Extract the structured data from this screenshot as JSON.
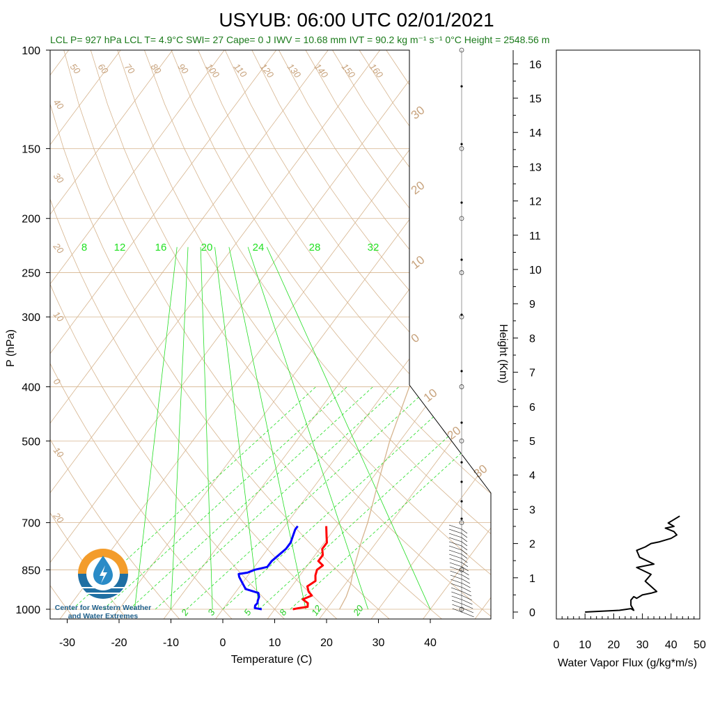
{
  "title": "USYUB: 06:00 UTC 02/01/2021",
  "info_line": "LCL P= 927 hPa  LCL T= 4.9°C  SWI= 27  Cape= 0 J  IWV = 10.68 mm  IVT = 90.2 kg m⁻¹ s⁻¹   0°C Height = 2548.56 m",
  "logo": {
    "line1": "Center for Western Weather",
    "line2": "and Water Extremes"
  },
  "colors": {
    "temperature": "#ff0000",
    "dewpoint": "#0000ff",
    "adiabats": "#d6b48e",
    "mixing_ratio": "#22dd22",
    "flux": "#000000"
  },
  "chart_data": [
    {
      "type": "line",
      "name": "skew-t",
      "xlabel": "Temperature (C)",
      "ylabel": "P (hPa)",
      "y_scale": "log",
      "y_ticks": [
        100,
        150,
        200,
        250,
        300,
        400,
        500,
        700,
        850,
        1000
      ],
      "x_ticks": [
        -30,
        -20,
        -10,
        0,
        10,
        20,
        30,
        40
      ],
      "xlim": [
        -33,
        51
      ],
      "ylim": [
        1050,
        100
      ],
      "dry_adiabat_labels": [
        "50",
        "60",
        "70",
        "80",
        "90",
        "100",
        "110",
        "120",
        "130",
        "140",
        "150",
        "160"
      ],
      "isotherm_labels_left": [
        "40",
        "30",
        "20",
        "10",
        "0",
        "10",
        "20"
      ],
      "isotherm_labels_right": [
        "30",
        "20",
        "10",
        "0",
        "10",
        "20",
        "30"
      ],
      "mixing_ratio_labels_top": [
        "8",
        "12",
        "16",
        "20",
        "24",
        "28",
        "32"
      ],
      "mixing_ratio_labels_bottom": [
        "2",
        "3",
        "5",
        "8",
        "12",
        "20"
      ],
      "series": [
        {
          "name": "temperature",
          "points": [
            [
              13.5,
              1000
            ],
            [
              14.5,
              995
            ],
            [
              16.0,
              990
            ],
            [
              15.5,
              975
            ],
            [
              14.0,
              960
            ],
            [
              15.2,
              945
            ],
            [
              14.0,
              930
            ],
            [
              13.0,
              910
            ],
            [
              13.8,
              890
            ],
            [
              13.0,
              870
            ],
            [
              12.5,
              850
            ],
            [
              13.0,
              835
            ],
            [
              11.5,
              820
            ],
            [
              11.5,
              800
            ],
            [
              10.5,
              780
            ],
            [
              10.5,
              760
            ],
            [
              9.5,
              740
            ],
            [
              8.5,
              720
            ],
            [
              8.0,
              710
            ]
          ]
        },
        {
          "name": "dewpoint",
          "points": [
            [
              7.5,
              1000
            ],
            [
              6.0,
              995
            ],
            [
              5.7,
              985
            ],
            [
              5.8,
              975
            ],
            [
              5.5,
              965
            ],
            [
              5.2,
              950
            ],
            [
              4.5,
              935
            ],
            [
              1.5,
              920
            ],
            [
              0.5,
              905
            ],
            [
              -0.5,
              890
            ],
            [
              -1.5,
              875
            ],
            [
              -2.0,
              865
            ],
            [
              -0.5,
              860
            ],
            [
              0.5,
              850
            ],
            [
              2.5,
              840
            ],
            [
              2.5,
              820
            ],
            [
              3.0,
              800
            ],
            [
              3.5,
              780
            ],
            [
              3.5,
              760
            ],
            [
              3.0,
              740
            ],
            [
              2.5,
              720
            ],
            [
              2.5,
              710
            ]
          ]
        },
        {
          "name": "parcel",
          "points": [
            [
              22.5,
              1000
            ],
            [
              22.0,
              950
            ],
            [
              21.0,
              900
            ],
            [
              19.5,
              850
            ],
            [
              18.2,
              800
            ],
            [
              16.8,
              750
            ],
            [
              15.5,
              700
            ],
            [
              12.0,
              600
            ],
            [
              8.0,
              500
            ],
            [
              4.0,
              400
            ],
            [
              2.5,
              300
            ],
            [
              2.0,
              250
            ],
            [
              5.0,
              225
            ],
            [
              12.0,
              200
            ],
            [
              22.0,
              150
            ],
            [
              35.0,
              100
            ]
          ]
        }
      ]
    },
    {
      "type": "line",
      "name": "water-vapor-flux",
      "xlabel": "Water Vapor Flux (g/kg*m/s)",
      "ylabel": "Height (Km)",
      "x_ticks": [
        0,
        10,
        20,
        30,
        40,
        50
      ],
      "y_ticks": [
        0,
        1,
        2,
        3,
        4,
        5,
        6,
        7,
        8,
        9,
        10,
        11,
        12,
        13,
        14,
        15,
        16
      ],
      "xlim": [
        0,
        50
      ],
      "ylim": [
        -0.2,
        16.3
      ],
      "values": [
        [
          10,
          0.0
        ],
        [
          22,
          0.05
        ],
        [
          26,
          0.1
        ],
        [
          27,
          0.05
        ],
        [
          26,
          0.2
        ],
        [
          26,
          0.35
        ],
        [
          27,
          0.45
        ],
        [
          28,
          0.4
        ],
        [
          30,
          0.5
        ],
        [
          33,
          0.55
        ],
        [
          35,
          0.6
        ],
        [
          31,
          0.9
        ],
        [
          33,
          1.1
        ],
        [
          28,
          1.3
        ],
        [
          34,
          1.4
        ],
        [
          29,
          1.6
        ],
        [
          28,
          1.8
        ],
        [
          31,
          1.9
        ],
        [
          33,
          2.0
        ],
        [
          36,
          2.05
        ],
        [
          40,
          2.15
        ],
        [
          42,
          2.25
        ],
        [
          41,
          2.35
        ],
        [
          38,
          2.45
        ],
        [
          41,
          2.5
        ],
        [
          39,
          2.6
        ],
        [
          41,
          2.7
        ],
        [
          42,
          2.75
        ],
        [
          43,
          2.8
        ]
      ]
    }
  ]
}
